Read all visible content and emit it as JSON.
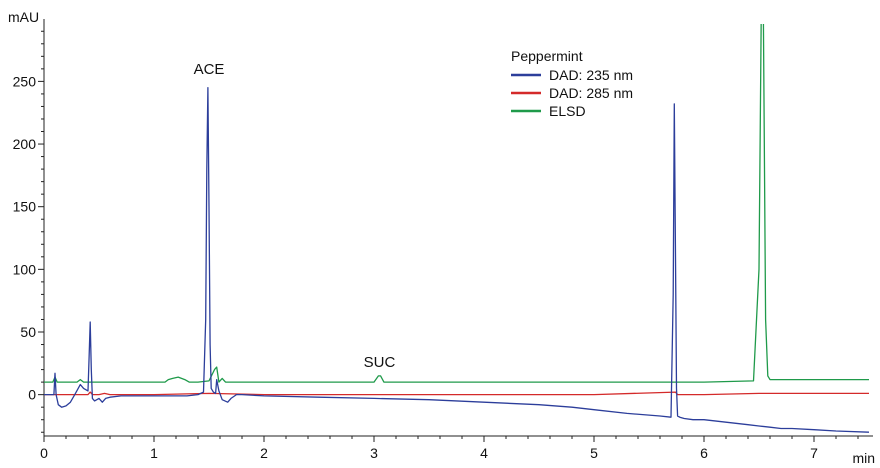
{
  "chart_data": {
    "type": "line",
    "title": "",
    "ylabel": "mAU",
    "xlabel": "min",
    "xlim": [
      0,
      7.5
    ],
    "ylim": [
      -33,
      295
    ],
    "x_ticks": [
      0,
      1,
      2,
      3,
      4,
      5,
      6,
      7
    ],
    "y_ticks": [
      0,
      50,
      100,
      150,
      200,
      250
    ],
    "grid": false,
    "legend": {
      "title": "Peppermint",
      "position": "top-center"
    },
    "annotations": [
      {
        "text": "ACE",
        "x": 1.5,
        "y": 256
      },
      {
        "text": "SUC",
        "x": 3.05,
        "y": 22
      }
    ],
    "series": [
      {
        "name": "DAD: 235 nm",
        "color": "#2c3e9b",
        "x": [
          0,
          0.09,
          0.1,
          0.11,
          0.13,
          0.16,
          0.2,
          0.24,
          0.28,
          0.33,
          0.36,
          0.4,
          0.41,
          0.42,
          0.43,
          0.44,
          0.46,
          0.5,
          0.53,
          0.56,
          0.6,
          0.7,
          0.8,
          0.9,
          1.0,
          1.1,
          1.2,
          1.3,
          1.4,
          1.45,
          1.47,
          1.48,
          1.49,
          1.5,
          1.51,
          1.52,
          1.54,
          1.56,
          1.57,
          1.59,
          1.62,
          1.67,
          1.7,
          1.75,
          1.8,
          2.0,
          2.5,
          3.0,
          3.5,
          4.0,
          4.5,
          4.8,
          5.0,
          5.3,
          5.6,
          5.7,
          5.72,
          5.73,
          5.74,
          5.75,
          5.76,
          5.78,
          5.82,
          5.9,
          6.0,
          6.2,
          6.4,
          6.5,
          6.6,
          6.7,
          6.8,
          7.0,
          7.2,
          7.5
        ],
        "y": [
          0,
          0,
          17,
          0,
          -8,
          -10,
          -9,
          -6,
          0,
          8,
          5,
          3,
          30,
          58,
          20,
          -3,
          -5,
          -3,
          -6,
          -3,
          -2,
          -1,
          -1,
          -1,
          -1,
          -1,
          -1,
          -1,
          0,
          2,
          60,
          180,
          245,
          150,
          40,
          5,
          2,
          1,
          12,
          3,
          -4,
          -6,
          -3,
          0,
          0,
          -1,
          -2,
          -3,
          -4,
          -6,
          -8,
          -10,
          -12,
          -15,
          -17,
          -18,
          80,
          232,
          120,
          5,
          -17,
          -18,
          -19,
          -20,
          -20,
          -22,
          -24,
          -25,
          -26,
          -27,
          -27,
          -28,
          -29,
          -30
        ]
      },
      {
        "name": "DAD: 285 nm",
        "color": "#d42a2a",
        "x": [
          0,
          0.4,
          0.42,
          0.44,
          0.5,
          0.55,
          0.6,
          1.0,
          1.5,
          2.0,
          3.0,
          4.0,
          5.0,
          5.74,
          5.76,
          6.0,
          6.5,
          7.0,
          7.5
        ],
        "y": [
          0,
          0,
          2,
          0,
          0,
          1,
          0,
          0,
          1,
          0,
          0,
          0,
          0,
          2,
          0,
          0,
          1,
          1,
          1
        ]
      },
      {
        "name": "ELSD",
        "color": "#1f9a4a",
        "x": [
          0,
          0.08,
          0.1,
          0.12,
          0.2,
          0.3,
          0.33,
          0.36,
          0.4,
          0.5,
          1.0,
          1.1,
          1.13,
          1.17,
          1.22,
          1.28,
          1.32,
          1.4,
          1.5,
          1.55,
          1.57,
          1.59,
          1.62,
          1.65,
          1.7,
          2.0,
          2.5,
          3.0,
          3.04,
          3.06,
          3.09,
          3.15,
          4.0,
          5.0,
          6.0,
          6.45,
          6.5,
          6.52,
          6.53,
          6.54,
          6.56,
          6.58,
          6.6,
          6.7,
          7.0,
          7.3,
          7.5
        ],
        "y": [
          10,
          10,
          14,
          10,
          10,
          10,
          12,
          10,
          10,
          10,
          10,
          10,
          12,
          13,
          14,
          12,
          10,
          10,
          11,
          20,
          22,
          10,
          13,
          10,
          10,
          10,
          10,
          10,
          15,
          15,
          10,
          10,
          10,
          10,
          10,
          11,
          100,
          300,
          300,
          300,
          60,
          15,
          12,
          12,
          12,
          12,
          12
        ]
      }
    ]
  }
}
